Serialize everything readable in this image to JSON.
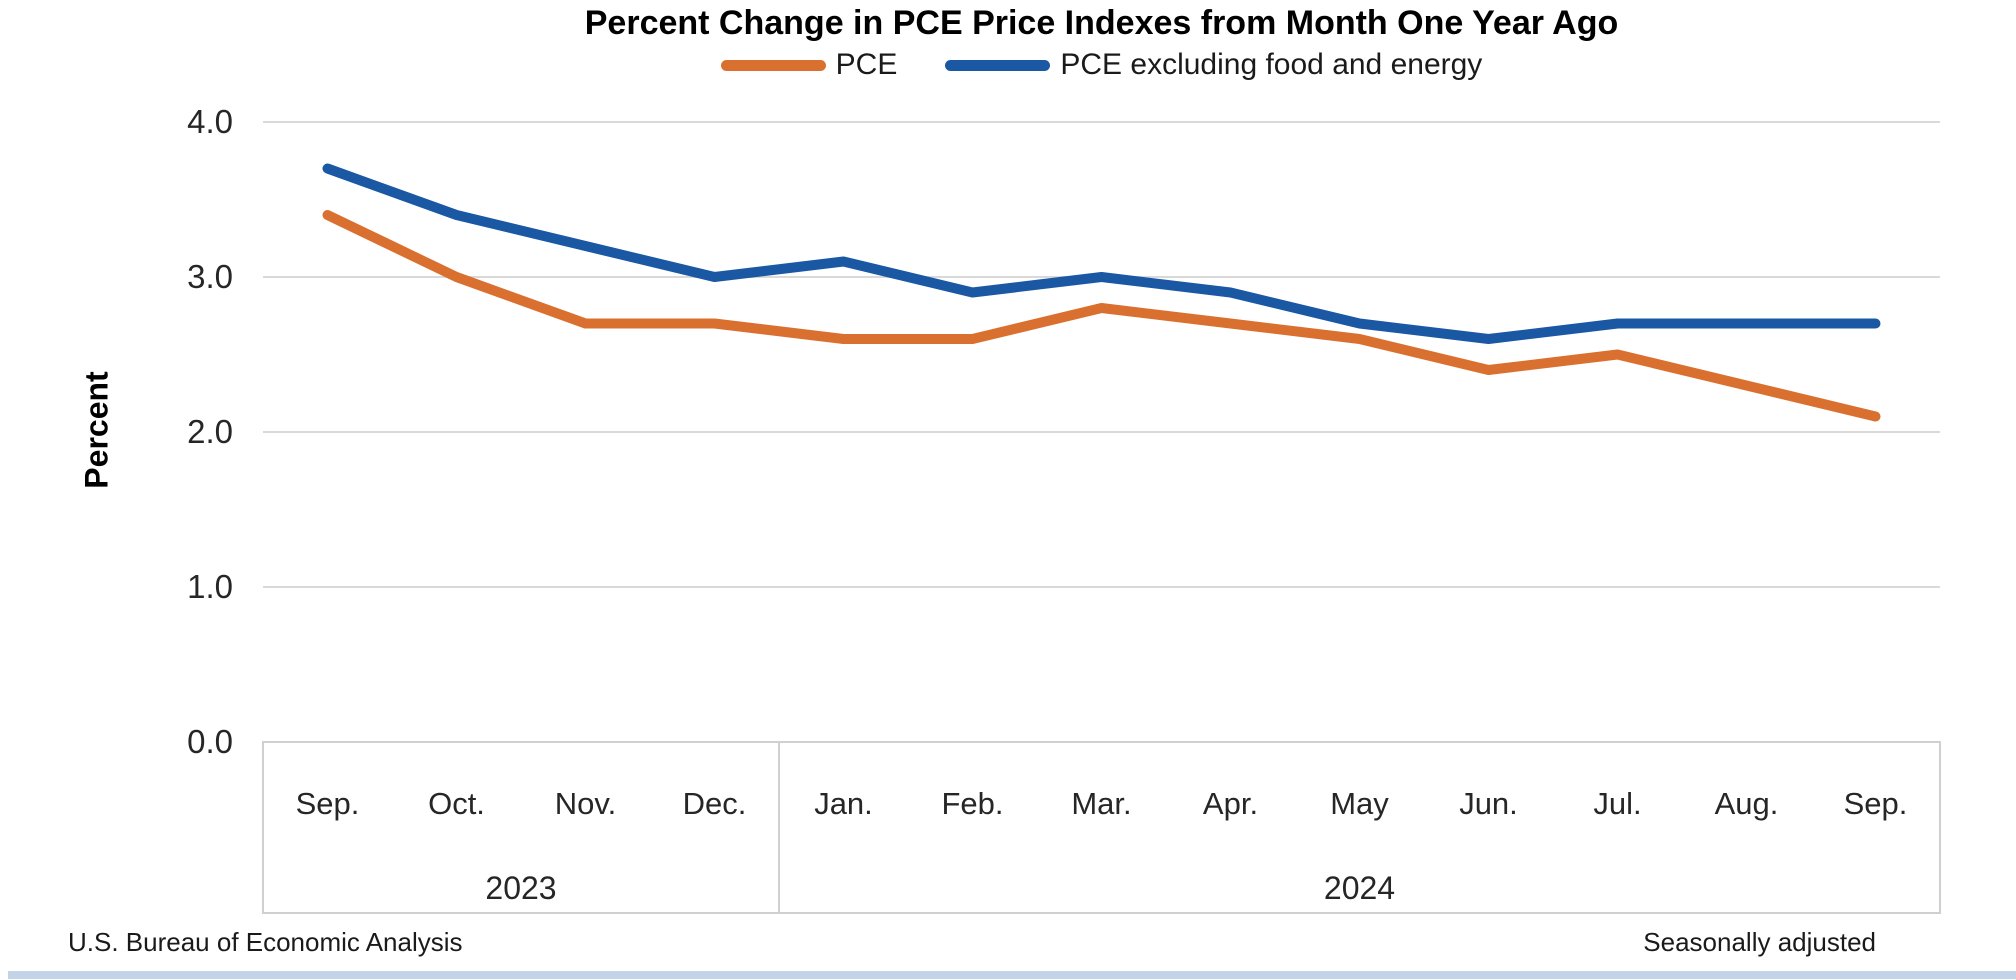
{
  "title": "Percent Change in PCE Price Indexes from Month One Year Ago",
  "y_axis_title": "Percent",
  "footer": {
    "left": "U.S. Bureau of Economic Analysis",
    "right": "Seasonally adjusted"
  },
  "legend": [
    {
      "label": "PCE",
      "color": "#DA7030"
    },
    {
      "label": "PCE excluding food and energy",
      "color": "#1A58A4"
    }
  ],
  "colors": {
    "pce_line": "#DA7030",
    "core_line": "#1A58A4",
    "gridline": "#D9D9D9",
    "axis_box": "#D0D0D0",
    "tick_text": "#262626",
    "bottom_strip": "#C3D3E8"
  },
  "chart_data": {
    "type": "line",
    "categories": [
      "Sep.",
      "Oct.",
      "Nov.",
      "Dec.",
      "Jan.",
      "Feb.",
      "Mar.",
      "Apr.",
      "May",
      "Jun.",
      "Jul.",
      "Aug.",
      "Sep."
    ],
    "year_groups": [
      {
        "label": "2023",
        "start": 0,
        "end": 3
      },
      {
        "label": "2024",
        "start": 4,
        "end": 12
      }
    ],
    "series": [
      {
        "name": "PCE",
        "color": "#DA7030",
        "values": [
          3.4,
          3.0,
          2.7,
          2.7,
          2.6,
          2.6,
          2.8,
          2.7,
          2.6,
          2.4,
          2.5,
          2.3,
          2.1
        ]
      },
      {
        "name": "PCE excluding food and energy",
        "color": "#1A58A4",
        "values": [
          3.7,
          3.4,
          3.2,
          3.0,
          3.1,
          2.9,
          3.0,
          2.9,
          2.7,
          2.6,
          2.7,
          2.7,
          2.7
        ]
      }
    ],
    "title": "Percent Change in PCE Price Indexes from Month One Year Ago",
    "xlabel": "",
    "ylabel": "Percent",
    "yticks": [
      0.0,
      1.0,
      2.0,
      3.0,
      4.0
    ],
    "ylim": [
      0.0,
      4.0
    ],
    "grid": true,
    "legend_position": "top",
    "annotations": [
      "Seasonally adjusted"
    ]
  }
}
